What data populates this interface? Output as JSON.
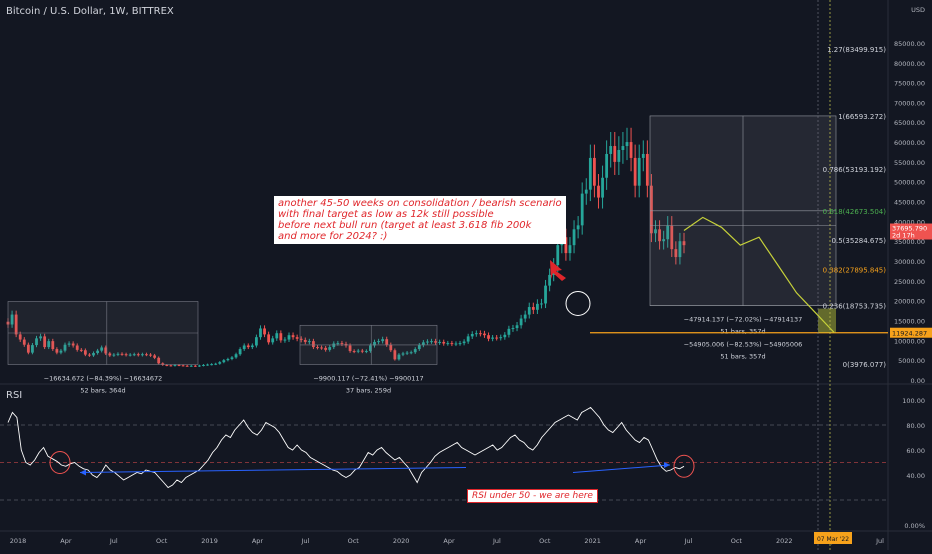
{
  "header": {
    "title": "Bitcoin / U.S. Dollar, 1W, BITTREX",
    "currency": "USD"
  },
  "annotation": {
    "text": "another 45-50 weeks on consolidation / bearish scenario\nwith final target as low as 12k still possible\nbefore next bull run (target at least 3.618 fib 200k\nand more for 2024? :)"
  },
  "rsi_note": "RSI under 50 - we are here",
  "last_price": {
    "value": "37695.790",
    "countdown": "2d 17h"
  },
  "target_price": "11924.287",
  "date_marker": "07 Mar '22",
  "date_marker2": "07 Mar '22",
  "colors": {
    "bg": "#131722",
    "up": "#26a69a",
    "down": "#ef5350",
    "rsi_line": "#ffffff",
    "projection": "#c6d13a",
    "target_line": "#f7a21b",
    "annot_red": "#e0262b",
    "arrow_blue": "#2962ff"
  },
  "chart_data": [
    {
      "type": "candlestick",
      "title": "Bitcoin / U.S. Dollar, 1W, BITTREX",
      "x_tick_labels": [
        "2018",
        "Apr",
        "Jul",
        "Oct",
        "2019",
        "Apr",
        "Jul",
        "Oct",
        "2020",
        "Apr",
        "Jul",
        "Oct",
        "2021",
        "Apr",
        "Jul",
        "Oct",
        "2022",
        "Apr",
        "Jul"
      ],
      "y_tick_labels": [
        0,
        5000,
        10000,
        15000,
        20000,
        25000,
        30000,
        35000,
        40000,
        45000,
        50000,
        55000,
        60000,
        65000,
        70000,
        75000,
        80000,
        85000
      ],
      "ylim": [
        0,
        87000
      ],
      "grid": false,
      "weekly_close": [
        14000,
        16500,
        11500,
        10200,
        8900,
        6900,
        8800,
        10500,
        11000,
        8300,
        9800,
        7800,
        6900,
        7400,
        8900,
        9200,
        8700,
        7600,
        7500,
        6400,
        6200,
        6800,
        7400,
        8200,
        6700,
        6200,
        6400,
        6600,
        6500,
        6300,
        6400,
        6500,
        6300,
        6500,
        6400,
        6200,
        5600,
        4200,
        3800,
        3700,
        3600,
        3800,
        3700,
        3600,
        3550,
        3600,
        3500,
        3650,
        3800,
        3900,
        4000,
        4100,
        4500,
        5000,
        5300,
        5700,
        6500,
        7800,
        8700,
        8300,
        8700,
        10800,
        13000,
        11500,
        9500,
        10500,
        11800,
        10000,
        10200,
        11300,
        10800,
        10400,
        10100,
        9600,
        9800,
        8300,
        8200,
        8100,
        7600,
        8300,
        9200,
        9300,
        9100,
        8700,
        7300,
        7200,
        7400,
        7200,
        7300,
        8700,
        9600,
        9800,
        10300,
        8900,
        7500,
        5200,
        6400,
        6700,
        6900,
        7000,
        7800,
        8800,
        9500,
        9700,
        9800,
        9400,
        9600,
        9200,
        9300,
        9100,
        9200,
        9300,
        9700,
        11000,
        11600,
        11800,
        11700,
        11300,
        10400,
        10700,
        10600,
        10800,
        11400,
        12900,
        13100,
        13800,
        15500,
        16500,
        18400,
        17700,
        19200,
        19300,
        23800,
        26500,
        29000,
        34000,
        36000,
        32000,
        34000,
        38000,
        39000,
        47000,
        48000,
        56000,
        49000,
        46000,
        51000,
        57000,
        59000,
        55000,
        58000,
        59000,
        60000,
        56000,
        49000,
        56000,
        57000,
        49000,
        37000,
        38000,
        35000,
        35500,
        39000,
        33000,
        31000,
        35000,
        34000
      ],
      "fib_levels": [
        {
          "level": "1.27",
          "value": 83499.915
        },
        {
          "level": "1",
          "value": 66593.272
        },
        {
          "level": "0.786",
          "value": 53193.192
        },
        {
          "level": "0.618",
          "value": 42673.504
        },
        {
          "level": "0.5",
          "value": 35284.675
        },
        {
          "level": "0.382",
          "value": 27895.845
        },
        {
          "level": "0.236",
          "value": 18753.735
        },
        {
          "level": "0",
          "value": 3976.077
        }
      ],
      "measurements": [
        {
          "label": "−16634.672 (−84.39%) −16634672",
          "bars": "52 bars, 364d"
        },
        {
          "label": "−9900.117 (−72.41%) −9900117",
          "bars": "37 bars, 259d"
        },
        {
          "label": "−47914.137 (−72.02%) −47914137",
          "bars": "51 bars, 357d"
        },
        {
          "label": "−54905.006 (−82.53%) −54905006",
          "bars": "51 bars, 357d"
        }
      ],
      "projection": [
        37695,
        41000,
        38500,
        34000,
        36000,
        29000,
        22000,
        17000,
        12000
      ]
    },
    {
      "type": "line",
      "title": "RSI",
      "ylim": [
        0,
        100
      ],
      "y_tick_labels": [
        "100.00",
        "80.00",
        "60.00",
        "40.00",
        "0.00%"
      ],
      "reference_lines": [
        80,
        50,
        20
      ],
      "values": [
        82,
        90,
        86,
        60,
        50,
        48,
        52,
        58,
        62,
        55,
        53,
        51,
        48,
        47,
        49,
        50,
        47,
        45,
        44,
        40,
        38,
        42,
        48,
        44,
        42,
        39,
        36,
        38,
        40,
        42,
        41,
        44,
        43,
        42,
        38,
        34,
        30,
        32,
        36,
        34,
        38,
        40,
        42,
        44,
        48,
        52,
        58,
        62,
        68,
        72,
        70,
        76,
        80,
        84,
        78,
        74,
        72,
        76,
        82,
        80,
        78,
        74,
        68,
        62,
        60,
        64,
        60,
        58,
        54,
        52,
        50,
        48,
        46,
        44,
        43,
        40,
        38,
        40,
        44,
        46,
        52,
        58,
        56,
        60,
        62,
        58,
        55,
        52,
        54,
        50,
        46,
        40,
        34,
        42,
        46,
        50,
        55,
        58,
        60,
        62,
        64,
        66,
        62,
        60,
        58,
        56,
        58,
        60,
        62,
        64,
        60,
        62,
        66,
        70,
        72,
        68,
        66,
        62,
        60,
        64,
        70,
        74,
        78,
        82,
        84,
        86,
        88,
        86,
        84,
        90,
        92,
        94,
        90,
        86,
        80,
        76,
        74,
        78,
        82,
        76,
        72,
        68,
        66,
        70,
        68,
        60,
        52,
        46,
        43,
        44,
        46,
        45,
        47
      ]
    }
  ]
}
